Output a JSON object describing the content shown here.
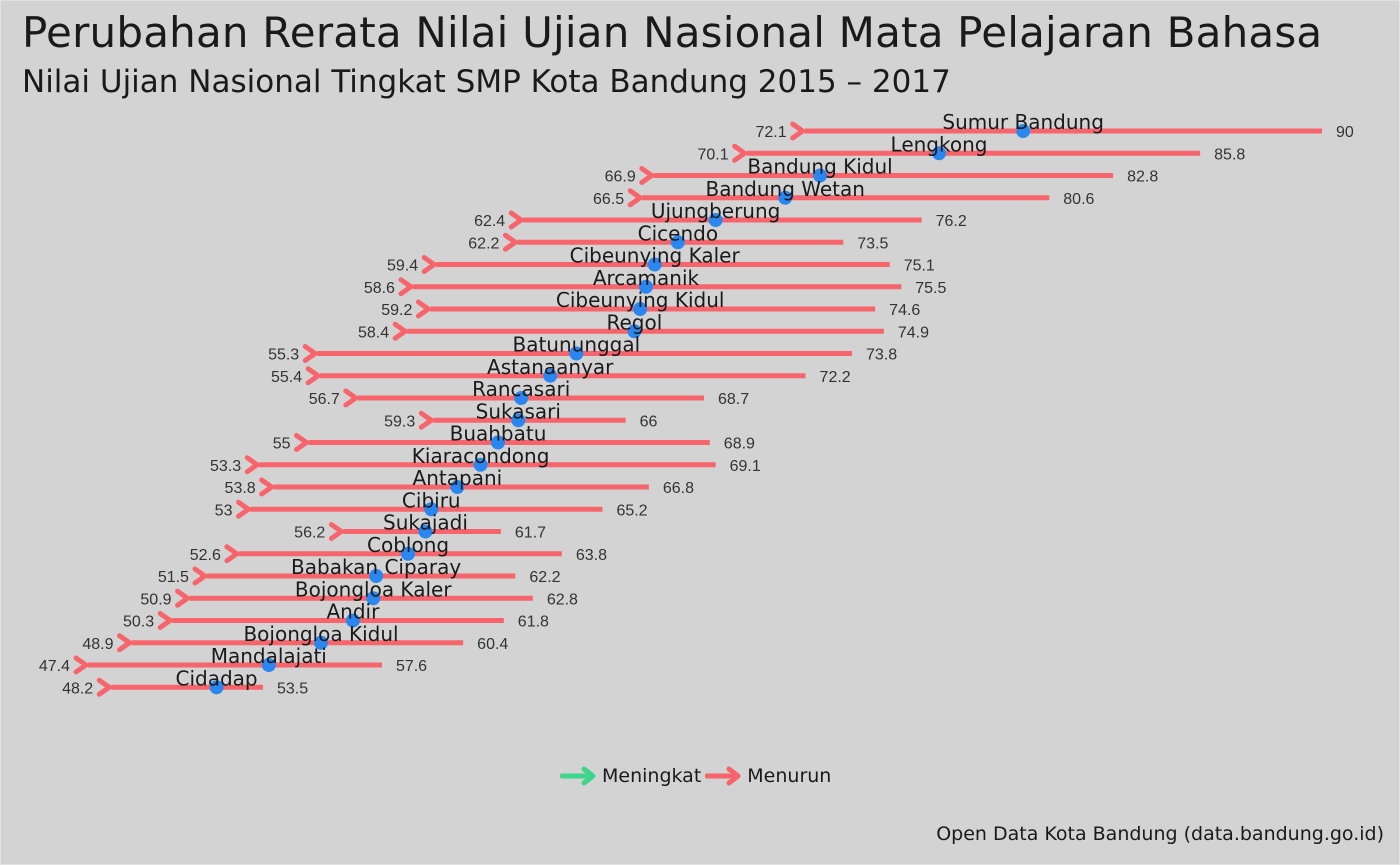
{
  "title": "Perubahan Rerata Nilai Ujian Nasional Mata Pelajaran Bahasa",
  "subtitle": "Nilai Ujian Nasional Tingkat SMP Kota Bandung 2015 – 2017",
  "caption": "Open Data Kota Bandung (data.bandung.go.id)",
  "legend": {
    "items": [
      {
        "label": "Meningkat",
        "color": "#3dd68c"
      },
      {
        "label": "Menurun",
        "color": "#f7646b"
      }
    ]
  },
  "colors": {
    "background": "#d3d3d3",
    "arrow_decrease": "#f7646b",
    "arrow_increase": "#3dd68c",
    "point": "#2b87f0"
  },
  "chart_data": {
    "type": "dumbbell-arrow",
    "start_year": "2015",
    "end_year": "2017",
    "start_values_shown": true,
    "x_axis_visible": false,
    "series": [
      {
        "name": "Sumur Bandung",
        "start": 90,
        "end": 72.1,
        "point": 79.7
      },
      {
        "name": "Lengkong",
        "start": 85.8,
        "end": 70.1,
        "point": 76.8
      },
      {
        "name": "Bandung Kidul",
        "start": 82.8,
        "end": 66.9,
        "point": 72.7
      },
      {
        "name": "Bandung Wetan",
        "start": 80.6,
        "end": 66.5,
        "point": 71.5
      },
      {
        "name": "Ujungberung",
        "start": 76.2,
        "end": 62.4,
        "point": 69.1
      },
      {
        "name": "Cicendo",
        "start": 73.5,
        "end": 62.2,
        "point": 67.8
      },
      {
        "name": "Cibeunying Kaler",
        "start": 75.1,
        "end": 59.4,
        "point": 67.0
      },
      {
        "name": "Arcamanik",
        "start": 75.5,
        "end": 58.6,
        "point": 66.7
      },
      {
        "name": "Cibeunying Kidul",
        "start": 74.6,
        "end": 59.2,
        "point": 66.5
      },
      {
        "name": "Regol",
        "start": 74.9,
        "end": 58.4,
        "point": 66.3
      },
      {
        "name": "Batununggal",
        "start": 73.8,
        "end": 55.3,
        "point": 64.3
      },
      {
        "name": "Astanaanyar",
        "start": 72.2,
        "end": 55.4,
        "point": 63.4
      },
      {
        "name": "Rancasari",
        "start": 68.7,
        "end": 56.7,
        "point": 62.4
      },
      {
        "name": "Sukasari",
        "start": 66,
        "end": 59.3,
        "point": 62.3
      },
      {
        "name": "Buahbatu",
        "start": 68.9,
        "end": 55,
        "point": 61.6
      },
      {
        "name": "Kiaracondong",
        "start": 69.1,
        "end": 53.3,
        "point": 61.0
      },
      {
        "name": "Antapani",
        "start": 66.8,
        "end": 53.8,
        "point": 60.2
      },
      {
        "name": "Cibiru",
        "start": 65.2,
        "end": 53,
        "point": 59.3
      },
      {
        "name": "Sukajadi",
        "start": 61.7,
        "end": 56.2,
        "point": 59.1
      },
      {
        "name": "Coblong",
        "start": 63.8,
        "end": 52.6,
        "point": 58.5
      },
      {
        "name": "Babakan Ciparay",
        "start": 62.2,
        "end": 51.5,
        "point": 57.4
      },
      {
        "name": "Bojongloa Kaler",
        "start": 62.8,
        "end": 50.9,
        "point": 57.3
      },
      {
        "name": "Andir",
        "start": 61.8,
        "end": 50.3,
        "point": 56.6
      },
      {
        "name": "Bojongloa Kidul",
        "start": 60.4,
        "end": 48.9,
        "point": 55.5
      },
      {
        "name": "Mandalajati",
        "start": 57.6,
        "end": 47.4,
        "point": 53.7
      },
      {
        "name": "Cidadap",
        "start": 53.5,
        "end": 48.2,
        "point": 51.9
      }
    ]
  }
}
